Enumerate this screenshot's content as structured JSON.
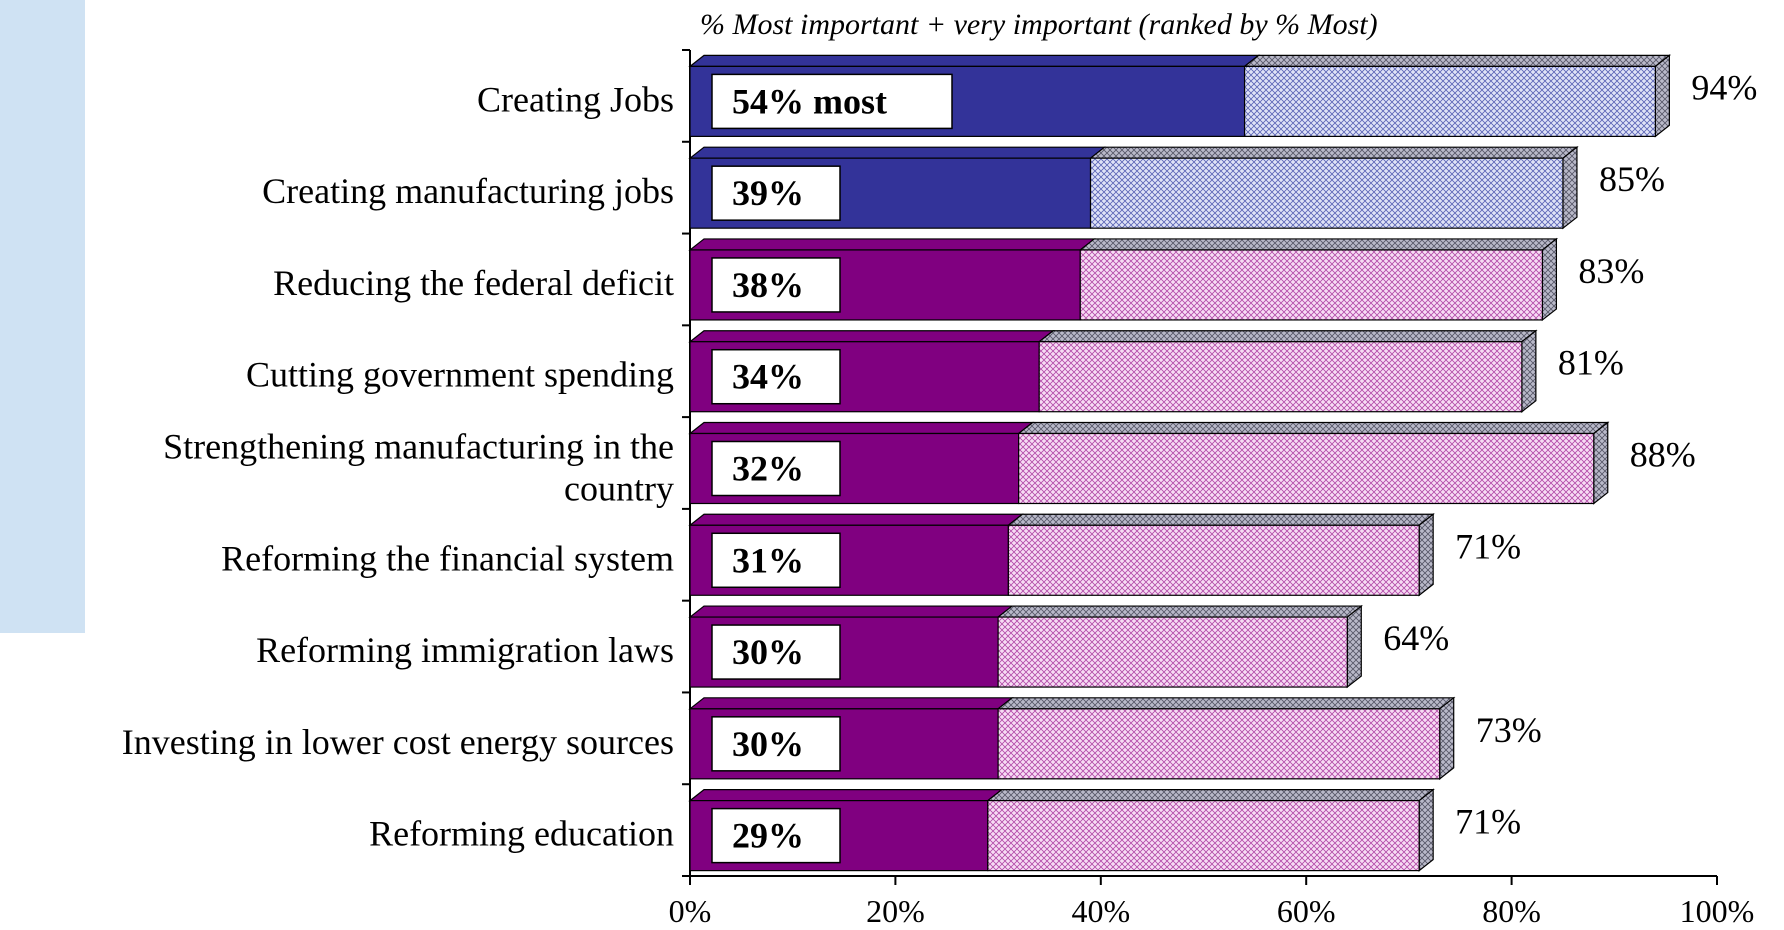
{
  "chart_data": {
    "type": "bar",
    "orientation": "horizontal",
    "stacked_3d": true,
    "title": "% Most important + very important (ranked by % Most)",
    "categories": [
      "Creating Jobs",
      "Creating manufacturing jobs",
      "Reducing the federal deficit",
      "Cutting government spending",
      "Strengthening manufacturing in the country",
      "Reforming the financial system",
      "Reforming immigration laws",
      "Investing in lower cost energy sources",
      "Reforming education"
    ],
    "category_lines": [
      [
        "Creating Jobs"
      ],
      [
        "Creating manufacturing jobs"
      ],
      [
        "Reducing the federal deficit"
      ],
      [
        "Cutting government spending"
      ],
      [
        "Strengthening manufacturing in the",
        "country"
      ],
      [
        "Reforming the financial system"
      ],
      [
        "Reforming immigration laws"
      ],
      [
        "Investing in lower cost energy sources"
      ],
      [
        "Reforming education"
      ]
    ],
    "series": [
      {
        "values": [
          54,
          39,
          38,
          34,
          32,
          31,
          30,
          30,
          29
        ]
      },
      {
        "values": [
          94,
          85,
          83,
          81,
          88,
          71,
          64,
          73,
          71
        ]
      }
    ],
    "most_labels": [
      "54% most",
      "39%",
      "38%",
      "34%",
      "32%",
      "31%",
      "30%",
      "30%",
      "29%"
    ],
    "total_labels": [
      "94%",
      "85%",
      "83%",
      "81%",
      "88%",
      "71%",
      "64%",
      "73%",
      "71%"
    ],
    "xlim": [
      0,
      100
    ],
    "x_ticks": [
      "0%",
      "20%",
      "40%",
      "60%",
      "80%",
      "100%"
    ],
    "colors": {
      "blue_dark": "#333399",
      "blue_light": "#c8cff0",
      "purple_dark": "#800080",
      "purple_light": "#f0c6ec",
      "side_panel": "#cfe2f3"
    },
    "grid": false
  }
}
